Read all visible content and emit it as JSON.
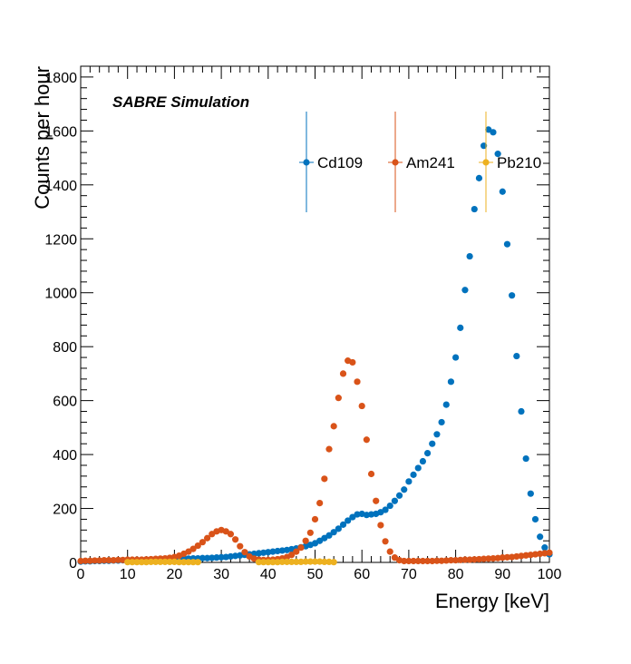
{
  "chart_data": {
    "type": "scatter",
    "title": "",
    "annotation": "SABRE Simulation",
    "xlabel": "Energy [keV]",
    "ylabel": "Counts per hour",
    "xlim": [
      0,
      100
    ],
    "ylim": [
      0,
      1840
    ],
    "x_ticks": [
      "0",
      "10",
      "20",
      "30",
      "40",
      "50",
      "60",
      "70",
      "80",
      "90",
      "100"
    ],
    "y_ticks": [
      "0",
      "200",
      "400",
      "600",
      "800",
      "1000",
      "1200",
      "1400",
      "1600",
      "1800"
    ],
    "legend_position": "top-right",
    "series": [
      {
        "name": "Cd109",
        "color": "#0072bd",
        "x": [
          0,
          1,
          2,
          3,
          4,
          5,
          6,
          7,
          8,
          9,
          10,
          11,
          12,
          13,
          14,
          15,
          16,
          17,
          18,
          19,
          20,
          21,
          22,
          23,
          24,
          25,
          26,
          27,
          28,
          29,
          30,
          31,
          32,
          33,
          34,
          35,
          36,
          37,
          38,
          39,
          40,
          41,
          42,
          43,
          44,
          45,
          46,
          47,
          48,
          49,
          50,
          51,
          52,
          53,
          54,
          55,
          56,
          57,
          58,
          59,
          60,
          61,
          62,
          63,
          64,
          65,
          66,
          67,
          68,
          69,
          70,
          71,
          72,
          73,
          74,
          75,
          76,
          77,
          78,
          79,
          80,
          81,
          82,
          83,
          84,
          85,
          86,
          87,
          88,
          89,
          90,
          91,
          92,
          93,
          94,
          95,
          96,
          97,
          98,
          99,
          100
        ],
        "values": [
          3,
          4,
          4,
          5,
          5,
          6,
          6,
          7,
          7,
          8,
          8,
          8,
          9,
          9,
          10,
          10,
          11,
          11,
          12,
          12,
          13,
          13,
          14,
          14,
          15,
          15,
          16,
          16,
          17,
          18,
          19,
          20,
          22,
          24,
          26,
          28,
          30,
          32,
          34,
          36,
          38,
          40,
          42,
          44,
          46,
          49,
          52,
          56,
          60,
          65,
          71,
          80,
          90,
          100,
          112,
          125,
          140,
          155,
          168,
          178,
          180,
          176,
          178,
          180,
          186,
          195,
          210,
          228,
          248,
          270,
          300,
          325,
          350,
          375,
          405,
          440,
          475,
          520,
          585,
          670,
          760,
          870,
          1010,
          1135,
          1310,
          1425,
          1545,
          1605,
          1595,
          1515,
          1375,
          1180,
          990,
          765,
          560,
          385,
          255,
          160,
          95,
          55,
          30
        ]
      },
      {
        "name": "Am241",
        "color": "#d95319",
        "x": [
          0,
          1,
          2,
          3,
          4,
          5,
          6,
          7,
          8,
          9,
          10,
          11,
          12,
          13,
          14,
          15,
          16,
          17,
          18,
          19,
          20,
          21,
          22,
          23,
          24,
          25,
          26,
          27,
          28,
          29,
          30,
          31,
          32,
          33,
          34,
          35,
          36,
          37,
          38,
          39,
          40,
          41,
          42,
          43,
          44,
          45,
          46,
          47,
          48,
          49,
          50,
          51,
          52,
          53,
          54,
          55,
          56,
          57,
          58,
          59,
          60,
          61,
          62,
          63,
          64,
          65,
          66,
          67,
          68,
          69,
          70,
          71,
          72,
          73,
          74,
          75,
          76,
          77,
          78,
          79,
          80,
          81,
          82,
          83,
          84,
          85,
          86,
          87,
          88,
          89,
          90,
          91,
          92,
          93,
          94,
          95,
          96,
          97,
          98,
          99,
          100
        ],
        "values": [
          5,
          6,
          6,
          7,
          7,
          8,
          8,
          8,
          9,
          9,
          10,
          10,
          10,
          10,
          11,
          12,
          13,
          14,
          15,
          17,
          20,
          25,
          32,
          40,
          50,
          62,
          75,
          90,
          105,
          115,
          120,
          115,
          105,
          85,
          60,
          38,
          22,
          14,
          10,
          9,
          9,
          10,
          12,
          15,
          20,
          28,
          40,
          55,
          80,
          110,
          160,
          220,
          310,
          420,
          505,
          610,
          700,
          748,
          742,
          670,
          580,
          455,
          328,
          228,
          138,
          78,
          40,
          18,
          8,
          5,
          5,
          5,
          5,
          5,
          5,
          5,
          6,
          6,
          7,
          8,
          8,
          9,
          10,
          10,
          11,
          12,
          13,
          14,
          15,
          16,
          18,
          19,
          20,
          22,
          24,
          26,
          28,
          30,
          32,
          34,
          36
        ]
      },
      {
        "name": "Pb210",
        "color": "#edb120",
        "x": [
          10,
          11,
          12,
          13,
          14,
          15,
          16,
          17,
          18,
          19,
          20,
          21,
          22,
          23,
          24,
          25,
          38,
          39,
          40,
          41,
          42,
          43,
          44,
          45,
          46,
          47,
          48,
          49,
          50,
          51,
          52,
          53,
          54
        ],
        "values": [
          1,
          1,
          1,
          1,
          1,
          2,
          2,
          2,
          2,
          2,
          2,
          1,
          1,
          1,
          1,
          1,
          1,
          1,
          1,
          1,
          1,
          2,
          2,
          2,
          2,
          2,
          3,
          3,
          3,
          3,
          2,
          2,
          1
        ]
      }
    ]
  }
}
